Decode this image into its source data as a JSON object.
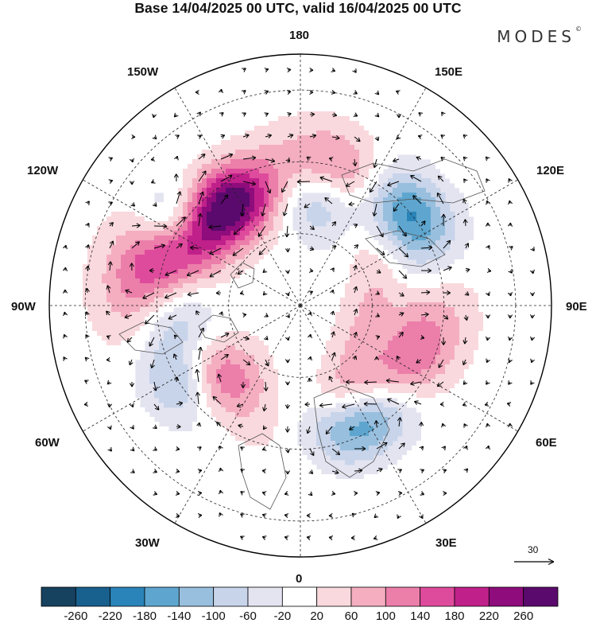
{
  "title": "Base 14/04/2025 00 UTC, valid 16/04/2025 00 UTC",
  "brand": "MODES",
  "brand_mark": "©",
  "longitude_labels": {
    "top": "180",
    "bottom": "0",
    "left": "90W",
    "right": "90E",
    "upper_left_1": "150W",
    "upper_left_2": "120W",
    "upper_right_1": "150E",
    "upper_right_2": "120E",
    "lower_left_1": "60W",
    "lower_left_2": "30W",
    "lower_right_1": "60E",
    "lower_right_2": "30E"
  },
  "reference_vector": {
    "value": "30"
  },
  "colorbar": {
    "colors": [
      "#16415f",
      "#18608d",
      "#2a84b9",
      "#5ea6cf",
      "#98bfde",
      "#c8d4ea",
      "#e4e4f1",
      "#ffffff",
      "#f9d9dd",
      "#f4aec0",
      "#ec7eaa",
      "#df4b9c",
      "#c0208a",
      "#8e0c7c",
      "#5a0a6c"
    ],
    "tick_labels": [
      "-260",
      "-220",
      "-180",
      "-140",
      "-100",
      "-60",
      "-20",
      "20",
      "60",
      "100",
      "140",
      "180",
      "220",
      "260"
    ]
  },
  "anomalies": [
    {
      "lon": 170,
      "colat": 32,
      "value": -270,
      "sx": 15,
      "sy": 8
    },
    {
      "lon": -160,
      "colat": 34,
      "value": 250,
      "sx": 13,
      "sy": 8
    },
    {
      "lon": -133,
      "colat": 34,
      "value": 200,
      "sx": 12,
      "sy": 7
    },
    {
      "lon": -125,
      "colat": 43,
      "value": -150,
      "sx": 7,
      "sy": 7
    },
    {
      "lon": -102,
      "colat": 42,
      "value": 200,
      "sx": 12,
      "sy": 9
    },
    {
      "lon": -82,
      "colat": 36,
      "value": -170,
      "sx": 12,
      "sy": 8
    },
    {
      "lon": -58,
      "colat": 40,
      "value": -100,
      "sx": 7,
      "sy": 6
    },
    {
      "lon": -34,
      "colat": 30,
      "value": 240,
      "sx": 15,
      "sy": 8
    },
    {
      "lon": -6,
      "colat": 30,
      "value": -260,
      "sx": 15,
      "sy": 8
    },
    {
      "lon": 16,
      "colat": 28,
      "value": 170,
      "sx": 14,
      "sy": 7
    },
    {
      "lon": 36,
      "colat": 37,
      "value": -170,
      "sx": 11,
      "sy": 7
    },
    {
      "lon": 67,
      "colat": 35,
      "value": 170,
      "sx": 14,
      "sy": 8
    },
    {
      "lon": 100,
      "colat": 30,
      "value": -60,
      "sx": 20,
      "sy": 8
    },
    {
      "lon": 116,
      "colat": 25,
      "value": 60,
      "sx": 15,
      "sy": 6
    },
    {
      "lon": 133,
      "colat": 40,
      "value": -200,
      "sx": 11,
      "sy": 7
    },
    {
      "lon": 155,
      "colat": 37,
      "value": 270,
      "sx": 12,
      "sy": 8
    },
    {
      "lon": 75,
      "colat": 18,
      "value": 60,
      "sx": 12,
      "sy": 5
    }
  ]
}
